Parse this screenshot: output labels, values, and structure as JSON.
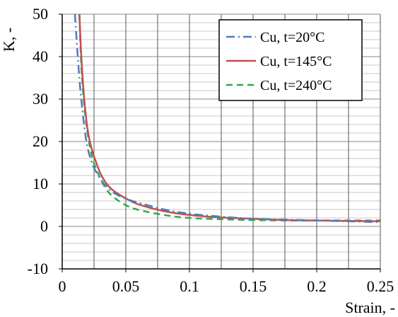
{
  "chart_data": {
    "type": "line",
    "title": "",
    "xlabel": "Strain, -",
    "ylabel": "K, -",
    "xlim": [
      0,
      0.25
    ],
    "ylim": [
      -10,
      50
    ],
    "x_ticks": [
      0,
      0.05,
      0.1,
      0.15,
      0.2,
      0.25
    ],
    "x_tick_labels": [
      "0",
      "0.05",
      "0.1",
      "0.15",
      "0.2",
      "0.25"
    ],
    "y_ticks": [
      -10,
      0,
      10,
      20,
      30,
      40,
      50
    ],
    "y_tick_labels": [
      "-10",
      "0",
      "10",
      "20",
      "30",
      "40",
      "50"
    ],
    "grid": true,
    "legend_position": "top-right",
    "series": [
      {
        "name": "Cu, t=20°C",
        "color": "#4f7bbd",
        "dash": "dash-dot",
        "x": [
          0.01,
          0.012,
          0.014,
          0.016,
          0.018,
          0.02,
          0.022,
          0.025,
          0.03,
          0.035,
          0.04,
          0.05,
          0.06,
          0.08,
          0.1,
          0.125,
          0.15,
          0.175,
          0.2,
          0.225,
          0.25
        ],
        "y": [
          50,
          41,
          33,
          27,
          22,
          18.5,
          16.2,
          13.8,
          11.2,
          9.3,
          8.0,
          6.5,
          5.6,
          4.0,
          3.0,
          2.3,
          1.8,
          1.6,
          1.4,
          1.2,
          1.0
        ]
      },
      {
        "name": "Cu, t=145°C",
        "color": "#c0504d",
        "dash": "solid",
        "x": [
          0.0135,
          0.015,
          0.017,
          0.019,
          0.021,
          0.023,
          0.025,
          0.03,
          0.035,
          0.04,
          0.05,
          0.06,
          0.08,
          0.1,
          0.125,
          0.15,
          0.175,
          0.2,
          0.225,
          0.25
        ],
        "y": [
          50,
          40,
          31,
          25,
          21,
          18.5,
          16.5,
          12.5,
          10.0,
          8.5,
          6.6,
          5.2,
          3.6,
          2.7,
          2.1,
          1.8,
          1.5,
          1.4,
          1.3,
          1.2
        ]
      },
      {
        "name": "Cu, t=240°C",
        "color": "#2ea84a",
        "dash": "dash",
        "x": [
          0.0135,
          0.015,
          0.017,
          0.019,
          0.021,
          0.023,
          0.025,
          0.03,
          0.035,
          0.04,
          0.05,
          0.06,
          0.08,
          0.1,
          0.125,
          0.15,
          0.175,
          0.2,
          0.225,
          0.25
        ],
        "y": [
          50,
          38,
          29.5,
          24,
          20,
          17,
          14.8,
          11.3,
          8.6,
          7.0,
          5.0,
          3.9,
          2.7,
          2.0,
          1.7,
          1.5,
          1.4,
          1.4,
          1.4,
          1.4
        ]
      }
    ]
  }
}
